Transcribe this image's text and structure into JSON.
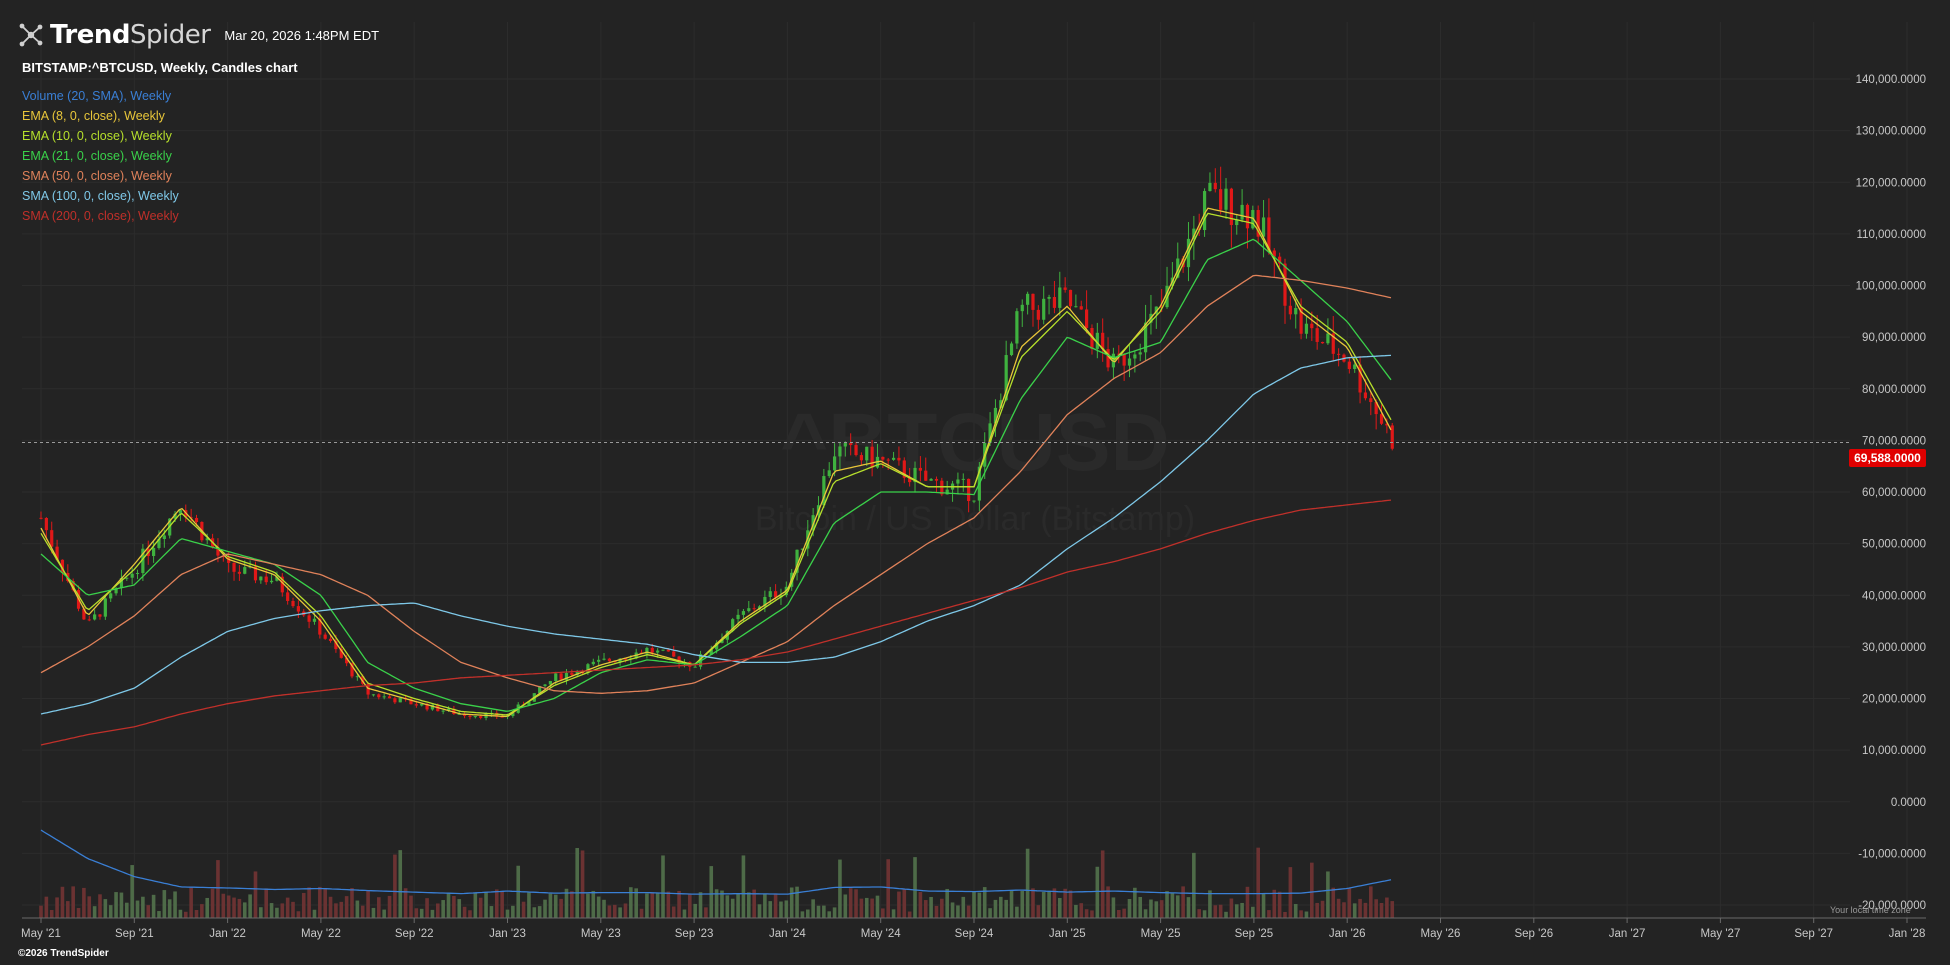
{
  "header": {
    "brand_bold": "Trend",
    "brand_light": "Spider",
    "timestamp": "Mar 20, 2026 1:48PM EDT",
    "chart_title": "BITSTAMP:^BTCUSD, Weekly, Candles chart",
    "icon": "trendspider-logo-icon"
  },
  "legend": [
    {
      "label": "Volume (20, SMA), Weekly",
      "color": "#3a7fd5"
    },
    {
      "label": "EMA (8, 0, close), Weekly",
      "color": "#e8c63a"
    },
    {
      "label": "EMA (10, 0, close), Weekly",
      "color": "#b7e02c"
    },
    {
      "label": "EMA (21, 0, close), Weekly",
      "color": "#3ad14a"
    },
    {
      "label": "SMA (50, 0, close), Weekly",
      "color": "#e0825a"
    },
    {
      "label": "SMA (100, 0, close), Weekly",
      "color": "#7ec8e8"
    },
    {
      "label": "SMA (200, 0, close), Weekly",
      "color": "#c0302a"
    }
  ],
  "current_price": "69,588.0000",
  "copyright": "©2026 TrendSpider",
  "tz_note": "Your local time zone",
  "watermark": {
    "symbol": "^BTCUSD",
    "name": "Bitcoin / US Dollar (Bitstamp)"
  },
  "colors": {
    "background": "#232323",
    "up": "#3fb23f",
    "down": "#e01818",
    "volume_up": "#4e6b48",
    "volume_down": "#6b3232",
    "price_tag": "#e00000"
  },
  "chart_data": {
    "type": "line",
    "symbol": "BITSTAMP:^BTCUSD",
    "interval": "Weekly",
    "price_axis": {
      "ticks": [
        "140,000.0000",
        "130,000.0000",
        "120,000.0000",
        "110,000.0000",
        "100,000.0000",
        "90,000.0000",
        "80,000.0000",
        "70,000.0000",
        "60,000.0000",
        "50,000.0000",
        "40,000.0000",
        "30,000.0000",
        "20,000.0000",
        "10,000.0000",
        "0.0000",
        "-10,000.0000",
        "-20,000.0000"
      ],
      "range": [
        -20000,
        140000
      ]
    },
    "time_axis": {
      "ticks": [
        "May '21",
        "Sep '21",
        "Jan '22",
        "May '22",
        "Sep '22",
        "Jan '23",
        "May '23",
        "Sep '23",
        "Jan '24",
        "May '24",
        "Sep '24",
        "Jan '25",
        "May '25",
        "Sep '25",
        "Jan '26",
        "May '26",
        "Sep '26",
        "Jan '27",
        "May '27",
        "Sep '27",
        "Jan '28"
      ]
    },
    "current_price": 69588,
    "close_x": [
      "May '21",
      "Jul '21",
      "Sep '21",
      "Nov '21",
      "Jan '22",
      "Mar '22",
      "May '22",
      "Jul '22",
      "Sep '22",
      "Nov '22",
      "Jan '23",
      "Mar '23",
      "May '23",
      "Jul '23",
      "Sep '23",
      "Nov '23",
      "Jan '24",
      "Mar '24",
      "May '24",
      "Jul '24",
      "Sep '24",
      "Nov '24",
      "Jan '25",
      "Mar '25",
      "May '25",
      "Jul '25",
      "Sep '25",
      "Nov '25",
      "Jan '26",
      "Mar '26"
    ],
    "close": [
      55000,
      34000,
      45000,
      58000,
      45000,
      43000,
      33000,
      21000,
      19000,
      17000,
      16500,
      24000,
      27000,
      29500,
      26500,
      36000,
      42000,
      68000,
      66000,
      62000,
      60000,
      95000,
      97000,
      84000,
      95000,
      117000,
      114000,
      92000,
      86000,
      69588
    ],
    "series": [
      {
        "name": "EMA (8, 0, close), Weekly",
        "values": [
          53000,
          36000,
          46000,
          57000,
          47000,
          44000,
          35000,
          22000,
          19500,
          17000,
          16500,
          23000,
          26500,
          29000,
          26500,
          35000,
          41000,
          64000,
          66000,
          61000,
          61000,
          88000,
          96000,
          85000,
          96000,
          115000,
          113000,
          95000,
          88000,
          71000
        ]
      },
      {
        "name": "EMA (10, 0, close), Weekly",
        "values": [
          52000,
          37000,
          45000,
          56000,
          47500,
          44500,
          36000,
          23000,
          20000,
          17500,
          16800,
          22500,
          26000,
          28500,
          26500,
          34500,
          40500,
          62000,
          65500,
          61000,
          61000,
          86000,
          95000,
          85500,
          95000,
          114000,
          112000,
          96000,
          89000,
          73000
        ]
      },
      {
        "name": "EMA (21, 0, close), Weekly",
        "values": [
          48000,
          40000,
          42000,
          51000,
          48500,
          46000,
          40000,
          27000,
          22000,
          19000,
          17500,
          20000,
          25000,
          27500,
          26500,
          32000,
          38000,
          54000,
          60000,
          60000,
          59500,
          78000,
          90000,
          86000,
          89000,
          105000,
          109000,
          101000,
          93000,
          81000
        ]
      },
      {
        "name": "SMA (50, 0, close), Weekly",
        "values": [
          25000,
          30000,
          36000,
          44000,
          48000,
          46000,
          44000,
          40000,
          33000,
          27000,
          24000,
          21500,
          21000,
          21500,
          23000,
          27000,
          31000,
          38000,
          44000,
          50000,
          55000,
          64000,
          75000,
          82000,
          87000,
          96000,
          102000,
          101000,
          99500,
          97500
        ]
      },
      {
        "name": "SMA (100, 0, close), Weekly",
        "values": [
          17000,
          19000,
          22000,
          28000,
          33000,
          35500,
          37000,
          38000,
          38500,
          36000,
          34000,
          32500,
          31500,
          30500,
          28500,
          27000,
          27000,
          28000,
          31000,
          35000,
          38000,
          42000,
          49000,
          55000,
          62000,
          70000,
          79000,
          84000,
          86000,
          86500
        ]
      },
      {
        "name": "SMA (200, 0, close), Weekly",
        "values": [
          11000,
          13000,
          14500,
          17000,
          19000,
          20500,
          21500,
          22500,
          23000,
          24000,
          24500,
          25000,
          25500,
          26000,
          26500,
          27500,
          29000,
          31500,
          34000,
          36500,
          39000,
          41500,
          44500,
          46500,
          49000,
          52000,
          54500,
          56500,
          57500,
          58500
        ]
      },
      {
        "name": "Volume (20, SMA), Weekly",
        "values": [
          -5500,
          -11000,
          -14500,
          -16500,
          -16700,
          -17000,
          -16800,
          -17200,
          -17500,
          -17800,
          -17300,
          -17700,
          -17600,
          -17600,
          -17900,
          -17800,
          -17900,
          -16600,
          -16500,
          -17300,
          -17400,
          -17100,
          -17500,
          -17300,
          -17600,
          -17800,
          -17800,
          -17700,
          -16800,
          -15000
        ]
      }
    ],
    "volume_sma_color": "#3a7fd5",
    "ylabel": "",
    "xlabel": "",
    "grid": true
  }
}
